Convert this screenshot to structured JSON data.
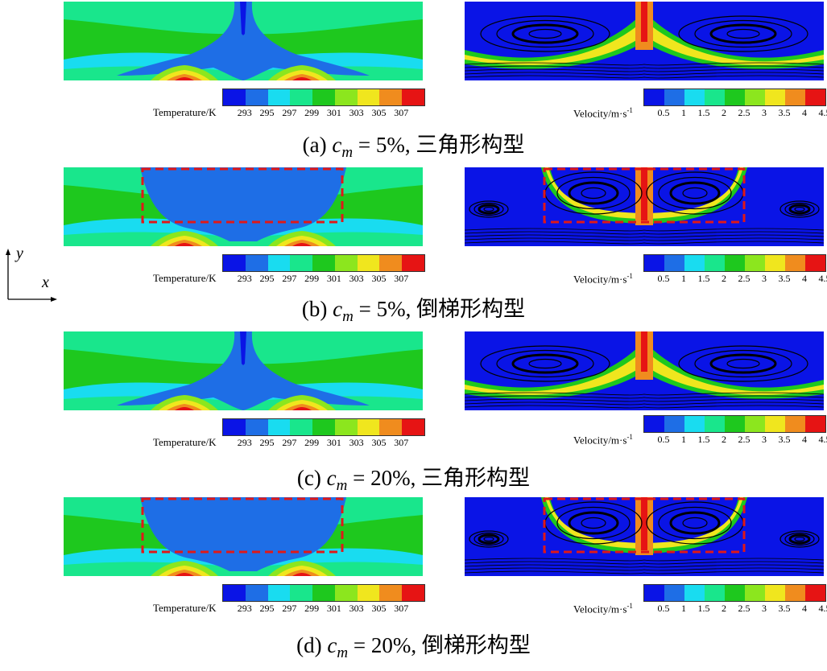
{
  "temperature_legend": {
    "title": "Temperature/K",
    "ticks": [
      "293",
      "295",
      "297",
      "299",
      "301",
      "303",
      "305",
      "307"
    ]
  },
  "velocity_legend": {
    "title": "Velocity/m·s",
    "title_sup": "-1",
    "ticks": [
      "0.5",
      "1",
      "1.5",
      "2",
      "2.5",
      "3",
      "3.5",
      "4",
      "4.5"
    ]
  },
  "colormap": [
    "#0a14e6",
    "#1e6ee6",
    "#19dcf0",
    "#19e68c",
    "#1ec81e",
    "#8ce61e",
    "#f0e61e",
    "#f08c1e",
    "#e61414"
  ],
  "panels": [
    {
      "label": "(a) ",
      "var": "c",
      "sub": "m",
      "rest": " = 5%, 三角形构型",
      "shape": "triangle",
      "highlight": false
    },
    {
      "label": "(b) ",
      "var": "c",
      "sub": "m",
      "rest": " = 5%, 倒梯形构型",
      "shape": "trapezoid",
      "highlight": true
    },
    {
      "label": "(c) ",
      "var": "c",
      "sub": "m",
      "rest": " = 20%, 三角形构型",
      "shape": "triangle",
      "highlight": false
    },
    {
      "label": "(d) ",
      "var": "c",
      "sub": "m",
      "rest": " = 20%, 倒梯形构型",
      "shape": "trapezoid",
      "highlight": true
    }
  ],
  "axes": {
    "x": "x",
    "y": "y"
  }
}
